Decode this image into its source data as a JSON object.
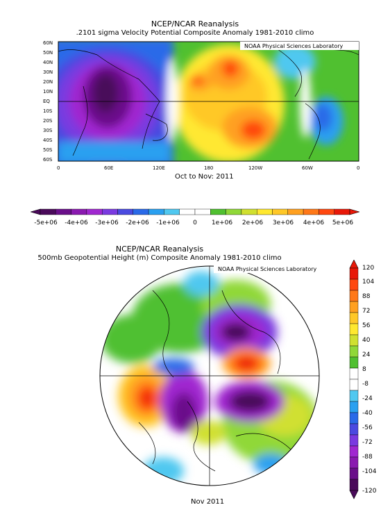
{
  "top_panel": {
    "title": "NCEP/NCAR Reanalysis",
    "subtitle": ".2101 sigma Velocity Potential   Composite Anomaly 1981-2010 climo",
    "credit": "NOAA Physical Sciences Laboratory",
    "footer": "Oct to Nov: 2011",
    "lat_labels": [
      "60N",
      "50N",
      "40N",
      "30N",
      "20N",
      "10N",
      "EQ",
      "10S",
      "20S",
      "30S",
      "40S",
      "50S",
      "60S"
    ],
    "lon_labels": [
      "0",
      "60E",
      "120E",
      "180",
      "120W",
      "60W",
      "0"
    ]
  },
  "horizontal_colorbar": {
    "labels": [
      "-5e+06",
      "-4e+06",
      "-3e+06",
      "-2e+06",
      "-1e+06",
      "0",
      "1e+06",
      "2e+06",
      "3e+06",
      "4e+06",
      "5e+06"
    ],
    "colors": [
      "#4a0a5a",
      "#6a0f8a",
      "#8a1ab0",
      "#a028d0",
      "#7a3ae0",
      "#4a4ae0",
      "#2a6ae8",
      "#2aa0f0",
      "#50c8f0",
      "#ffffff",
      "#ffffff",
      "#50c030",
      "#90d838",
      "#d0e030",
      "#ffe830",
      "#ffc828",
      "#ffa020",
      "#ff7818",
      "#ff4810",
      "#e81808"
    ]
  },
  "bottom_panel": {
    "title": "NCEP/NCAR Reanalysis",
    "subtitle": "500mb Geopotential Height (m) Composite Anomaly 1981-2010 climo",
    "credit": "NOAA Physical Sciences Laboratory",
    "footer": "Nov 2011"
  },
  "vertical_colorbar": {
    "labels": [
      "120",
      "104",
      "88",
      "72",
      "56",
      "40",
      "24",
      "8",
      "-8",
      "-24",
      "-40",
      "-56",
      "-72",
      "-88",
      "-104",
      "-120"
    ],
    "colors": [
      "#e81808",
      "#ff4810",
      "#ff7818",
      "#ffa020",
      "#ffc828",
      "#ffe830",
      "#d0e030",
      "#90d838",
      "#50c030",
      "#ffffff",
      "#ffffff",
      "#50c8f0",
      "#2aa0f0",
      "#2a6ae8",
      "#4a4ae0",
      "#7a3ae0",
      "#a028d0",
      "#8a1ab0",
      "#6a0f8a",
      "#4a0a5a"
    ]
  }
}
